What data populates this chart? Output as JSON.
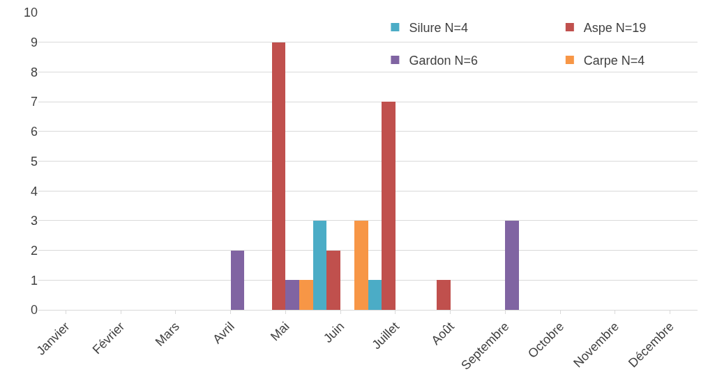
{
  "chart_data": {
    "type": "bar",
    "categories": [
      "Janvier",
      "Février",
      "Mars",
      "Avril",
      "Mai",
      "Juin",
      "Juillet",
      "Août",
      "Septembre",
      "Octobre",
      "Novembre",
      "Décembre"
    ],
    "series": [
      {
        "name": "Silure N=4",
        "color": "#4bacc6",
        "values": [
          null,
          null,
          null,
          null,
          null,
          3,
          1,
          null,
          null,
          null,
          null,
          null
        ]
      },
      {
        "name": "Aspe N=19",
        "color": "#c0504d",
        "values": [
          null,
          null,
          null,
          null,
          9,
          2,
          7,
          1,
          null,
          null,
          null,
          null
        ]
      },
      {
        "name": "Gardon N=6",
        "color": "#8064a2",
        "values": [
          null,
          null,
          null,
          2,
          1,
          null,
          null,
          null,
          3,
          null,
          null,
          null
        ]
      },
      {
        "name": "Carpe N=4",
        "color": "#f79646",
        "values": [
          null,
          null,
          null,
          null,
          1,
          3,
          null,
          null,
          null,
          null,
          null,
          null
        ]
      }
    ],
    "ylim": [
      0,
      10
    ],
    "yticks": [
      0,
      1,
      2,
      3,
      4,
      5,
      6,
      7,
      8,
      9,
      10
    ],
    "grid": "y",
    "legend": "top right"
  }
}
